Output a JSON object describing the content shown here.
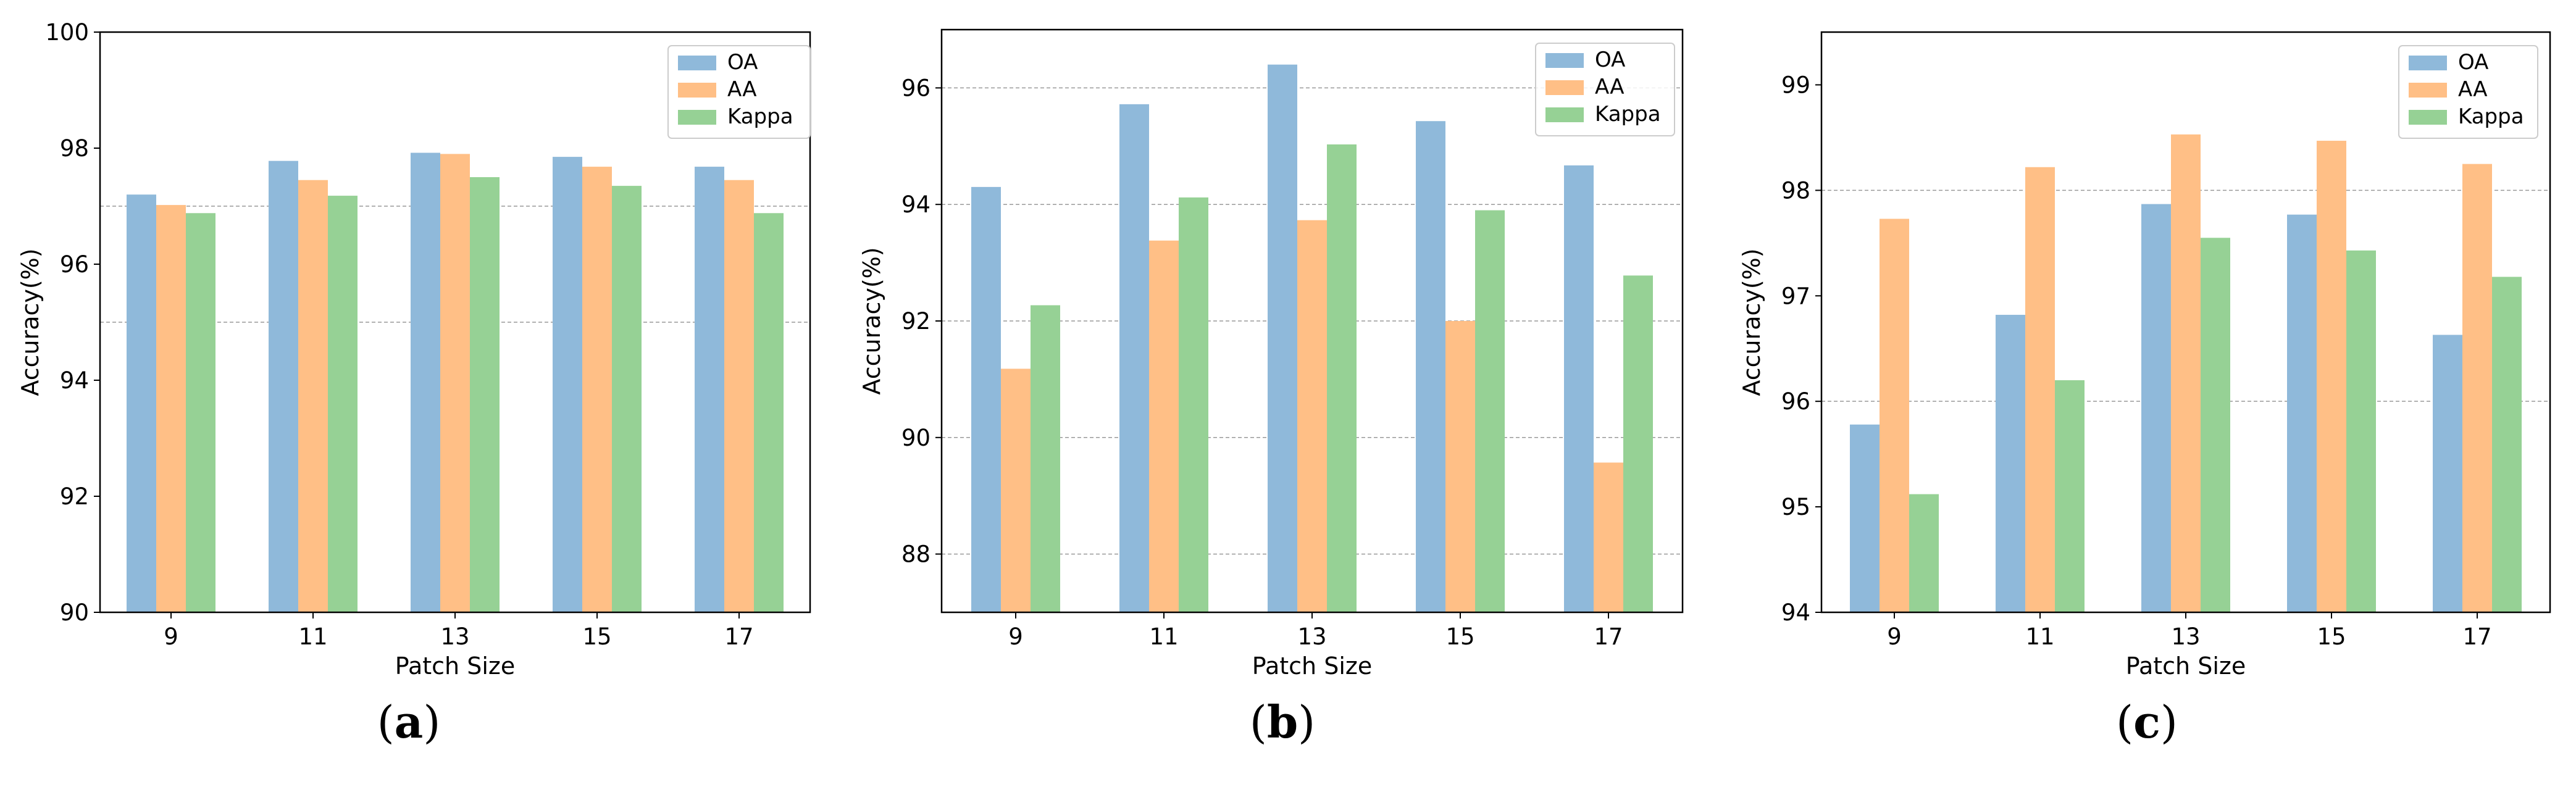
{
  "colors": {
    "OA": "#8fb9da",
    "AA": "#ffbf86",
    "Kappa": "#96d195",
    "grid": "#999999"
  },
  "chart_data": [
    {
      "panel": "(a)",
      "panel_open": "(",
      "panel_letter": "a",
      "panel_close": ")",
      "type": "bar",
      "xlabel": "Patch Size",
      "ylabel": "Accuracy(%)",
      "categories": [
        "9",
        "11",
        "13",
        "15",
        "17"
      ],
      "ylim": [
        90,
        100
      ],
      "yticks": [
        90,
        92,
        94,
        96,
        98,
        100
      ],
      "grid_lines": [
        95,
        97
      ],
      "legend": "top-right",
      "series": [
        {
          "name": "OA",
          "values": [
            97.2,
            97.78,
            97.92,
            97.85,
            97.68
          ]
        },
        {
          "name": "AA",
          "values": [
            97.02,
            97.45,
            97.9,
            97.68,
            97.45
          ]
        },
        {
          "name": "Kappa",
          "values": [
            96.88,
            97.18,
            97.5,
            97.35,
            96.88
          ]
        }
      ]
    },
    {
      "panel": "(b)",
      "panel_open": "(",
      "panel_letter": "b",
      "panel_close": ")",
      "type": "bar",
      "xlabel": "Patch Size",
      "ylabel": "Accuracy(%)",
      "categories": [
        "9",
        "11",
        "13",
        "15",
        "17"
      ],
      "ylim": [
        87,
        97
      ],
      "yticks": [
        88,
        90,
        92,
        94,
        96
      ],
      "grid_lines": [
        88,
        90,
        92,
        94,
        96
      ],
      "legend": "top-right",
      "series": [
        {
          "name": "OA",
          "values": [
            94.3,
            95.72,
            96.4,
            95.43,
            94.67
          ]
        },
        {
          "name": "AA",
          "values": [
            91.18,
            93.38,
            93.73,
            92.0,
            89.57
          ]
        },
        {
          "name": "Kappa",
          "values": [
            92.27,
            94.12,
            95.03,
            93.9,
            92.78
          ]
        }
      ]
    },
    {
      "panel": "(c)",
      "panel_open": "(",
      "panel_letter": "c",
      "panel_close": ")",
      "type": "bar",
      "xlabel": "Patch Size",
      "ylabel": "Accuracy(%)",
      "categories": [
        "9",
        "11",
        "13",
        "15",
        "17"
      ],
      "ylim": [
        94,
        99.5
      ],
      "yticks": [
        94,
        95,
        96,
        97,
        98,
        99
      ],
      "grid_lines": [
        96,
        98
      ],
      "legend": "top-right",
      "series": [
        {
          "name": "OA",
          "values": [
            95.78,
            96.82,
            97.87,
            97.77,
            96.63
          ]
        },
        {
          "name": "AA",
          "values": [
            97.73,
            98.22,
            98.53,
            98.47,
            98.25
          ]
        },
        {
          "name": "Kappa",
          "values": [
            95.12,
            96.2,
            97.55,
            97.43,
            97.18
          ]
        }
      ]
    }
  ]
}
